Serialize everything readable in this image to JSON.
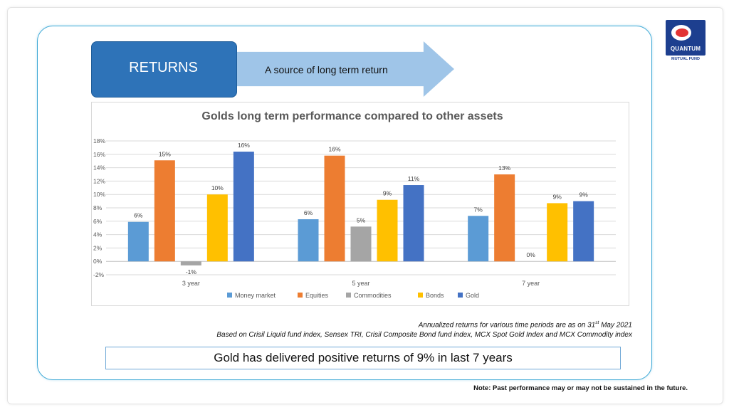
{
  "logo": {
    "name": "QUANTUM",
    "sub": "MUTUAL FUND"
  },
  "header": {
    "badge": "RETURNS",
    "arrow_text": "A source of long term return"
  },
  "colors": {
    "accent": "#2e73b8",
    "arrow": "#9fc5e8",
    "panel_border": "#3fa9d6"
  },
  "chart_data": {
    "type": "bar",
    "title": "Golds long term performance compared to other assets",
    "categories": [
      "3 year",
      "5 year",
      "7 year"
    ],
    "series": [
      {
        "name": "Money market",
        "color": "#5b9bd5",
        "values": [
          5.9,
          6.3,
          6.8
        ],
        "labels": [
          "6%",
          "6%",
          "7%"
        ]
      },
      {
        "name": "Equities",
        "color": "#ed7d31",
        "values": [
          15.1,
          15.8,
          13.0
        ],
        "labels": [
          "15%",
          "16%",
          "13%"
        ]
      },
      {
        "name": "Commodities",
        "color": "#a5a5a5",
        "values": [
          -0.6,
          5.2,
          0.0
        ],
        "labels": [
          "-1%",
          "5%",
          "0%"
        ]
      },
      {
        "name": "Bonds",
        "color": "#ffc000",
        "values": [
          10.0,
          9.2,
          8.7
        ],
        "labels": [
          "10%",
          "9%",
          "9%"
        ]
      },
      {
        "name": "Gold",
        "color": "#4472c4",
        "values": [
          16.4,
          11.4,
          9.0
        ],
        "labels": [
          "16%",
          "11%",
          "9%"
        ]
      }
    ],
    "yticks": [
      "18%",
      "16%",
      "14%",
      "12%",
      "10%",
      "8%",
      "6%",
      "4%",
      "2%",
      "0%",
      "-2%"
    ],
    "ylim": [
      -2,
      18
    ],
    "ystep": 2,
    "grid": true,
    "legend_position": "bottom"
  },
  "notes": {
    "line1_prefix": "Annualized returns for various time periods are as on 31",
    "line1_sup": "st",
    "line1_suffix": " May 2021",
    "line2": "Based on Crisil Liquid fund index, Sensex TRI, Crisil Composite Bond fund index, MCX Spot Gold Index and MCX Commodity index"
  },
  "highlight": "Gold has delivered positive returns of 9% in last 7 years",
  "disclaimer": "Note: Past performance may or may not be sustained in the future."
}
